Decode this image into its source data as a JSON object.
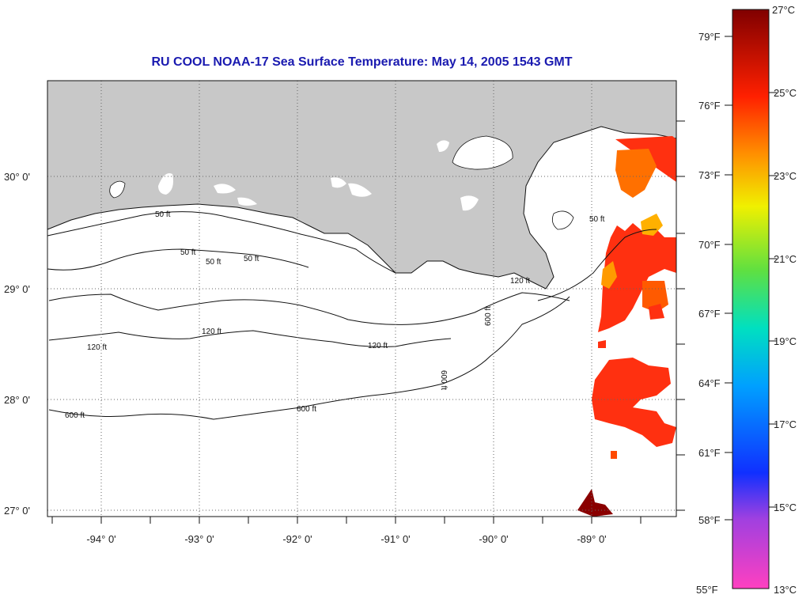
{
  "title": "RU COOL  NOAA-17  Sea Surface Temperature:  May 14, 2005 1543 GMT",
  "map": {
    "lat_labels": [
      "30° 0'",
      "29° 0'",
      "28° 0'",
      "27° 0'"
    ],
    "lon_labels": [
      "-94° 0'",
      "-93° 0'",
      "-92° 0'",
      "-91° 0'",
      "-90° 0'",
      "-89° 0'"
    ],
    "contour_labels": [
      "50 ft",
      "50 ft",
      "50 ft",
      "50 ft",
      "50 ft",
      "120 ft",
      "120 ft",
      "120 ft",
      "120 ft",
      "600 ft",
      "600 ft",
      "600 ft",
      "600 ft"
    ],
    "colors": {
      "land": "#c8c8c8",
      "water": "#ffffff",
      "title": "#1a1ab0"
    }
  },
  "colorbar": {
    "f_labels": [
      "79°F",
      "76°F",
      "73°F",
      "70°F",
      "67°F",
      "64°F",
      "61°F",
      "58°F",
      "55°F"
    ],
    "c_labels": [
      "27°C",
      "25°C",
      "23°C",
      "21°C",
      "19°C",
      "17°C",
      "15°C",
      "13°C"
    ]
  }
}
